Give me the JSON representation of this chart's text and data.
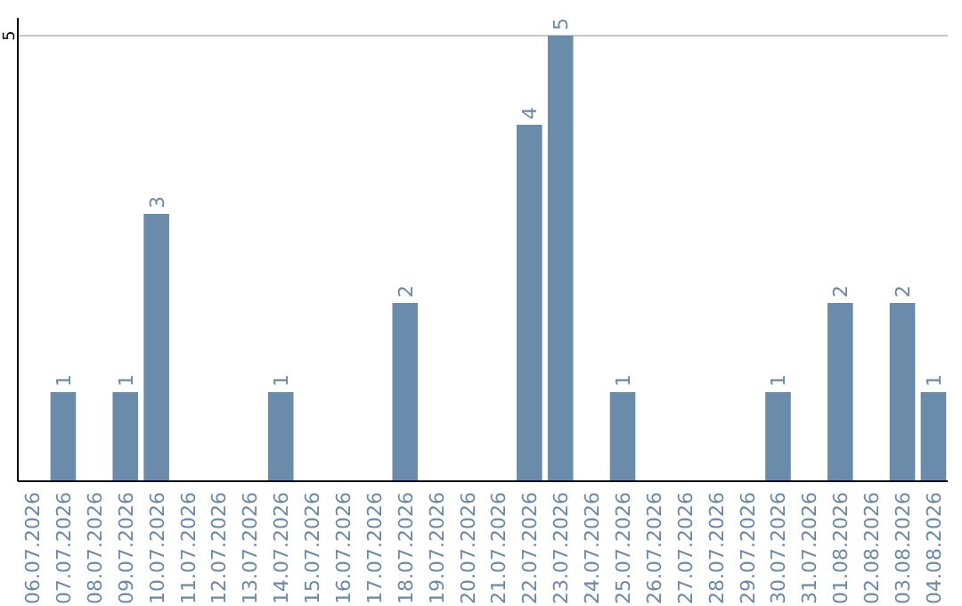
{
  "chart_data": {
    "type": "bar",
    "categories": [
      "06.07.2026",
      "07.07.2026",
      "08.07.2026",
      "09.07.2026",
      "10.07.2026",
      "11.07.2026",
      "12.07.2026",
      "13.07.2026",
      "14.07.2026",
      "15.07.2026",
      "16.07.2026",
      "17.07.2026",
      "18.07.2026",
      "19.07.2026",
      "20.07.2026",
      "21.07.2026",
      "22.07.2026",
      "23.07.2026",
      "24.07.2026",
      "25.07.2026",
      "26.07.2026",
      "27.07.2026",
      "28.07.2026",
      "29.07.2026",
      "30.07.2026",
      "31.07.2026",
      "01.08.2026",
      "02.08.2026",
      "03.08.2026",
      "04.08.2026"
    ],
    "values": [
      0,
      1,
      0,
      1,
      3,
      0,
      0,
      0,
      1,
      0,
      0,
      0,
      2,
      0,
      0,
      0,
      4,
      5,
      0,
      1,
      0,
      0,
      0,
      0,
      1,
      0,
      2,
      0,
      2,
      1
    ],
    "value_labels": [
      null,
      "1",
      null,
      "1",
      "3",
      null,
      null,
      null,
      "1",
      null,
      null,
      null,
      "2",
      null,
      null,
      null,
      "4",
      "5",
      null,
      "1",
      null,
      null,
      null,
      null,
      "1",
      null,
      "2",
      null,
      "2",
      "1"
    ],
    "color": "#6a8caa",
    "ylim": [
      0,
      5.2
    ],
    "yticks": [
      5
    ],
    "grid": "y"
  }
}
